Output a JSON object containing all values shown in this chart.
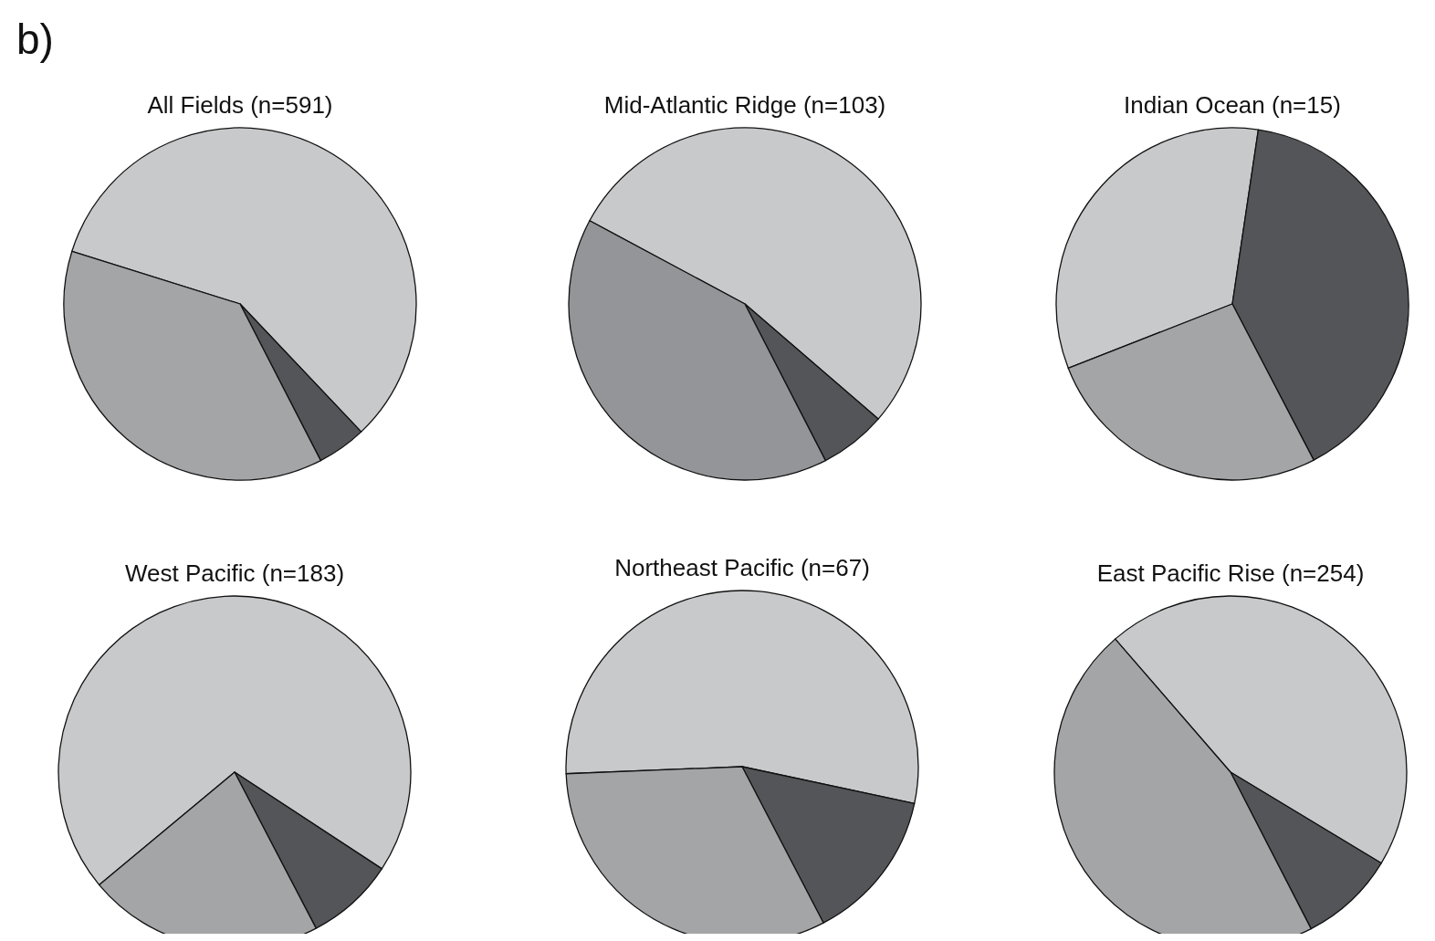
{
  "chart_data": [
    {
      "type": "pie",
      "title": "All Fields (n=591)",
      "annotations": [
        "b)"
      ],
      "categories": [
        null,
        null,
        null
      ],
      "values": [
        58.1,
        4.5,
        37.4
      ],
      "colors": [
        "#c8c9cb",
        "#535558",
        "#a4a5a7"
      ]
    },
    {
      "type": "pie",
      "title": "Mid-Atlantic Ridge (n=103)",
      "categories": [
        null,
        null,
        null
      ],
      "values": [
        53.5,
        6.1,
        40.4
      ],
      "colors": [
        "#c8c9cb",
        "#535558",
        "#939598"
      ]
    },
    {
      "type": "pie",
      "title": "Indian Ocean (n=15)",
      "categories": [
        null,
        null,
        null
      ],
      "values": [
        33.3,
        40,
        26.7
      ],
      "colors": [
        "#c8c9cb",
        "#535558",
        "#a4a5a7"
      ]
    },
    {
      "type": "pie",
      "title": "West Pacific (n=183)",
      "categories": [
        null,
        null,
        null
      ],
      "values": [
        70.3,
        8.1,
        21.6
      ],
      "colors": [
        "#c8c9cb",
        "#535558",
        "#a4a5a7"
      ]
    },
    {
      "type": "pie",
      "title": "Northeast Pacific (n=67)",
      "categories": [
        null,
        null,
        null
      ],
      "values": [
        54,
        14,
        32
      ],
      "colors": [
        "#c8c9cb",
        "#535558",
        "#a4a5a7"
      ]
    },
    {
      "type": "pie",
      "title": "East Pacific Rise (n=254)",
      "categories": [
        null,
        null,
        null
      ],
      "values": [
        45,
        8.8,
        46.2
      ],
      "colors": [
        "#c8c9cb",
        "#535558",
        "#a4a5a7"
      ]
    }
  ]
}
